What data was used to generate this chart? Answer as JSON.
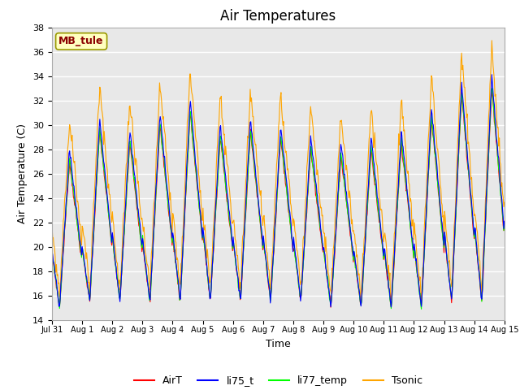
{
  "title": "Air Temperatures",
  "xlabel": "Time",
  "ylabel": "Air Temperature (C)",
  "ylim": [
    14,
    38
  ],
  "yticks": [
    14,
    16,
    18,
    20,
    22,
    24,
    26,
    28,
    30,
    32,
    34,
    36,
    38
  ],
  "xtick_labels": [
    "Jul 31",
    "Aug 1",
    "Aug 2",
    "Aug 3",
    "Aug 4",
    "Aug 5",
    "Aug 6",
    "Aug 7",
    "Aug 8",
    "Aug 9",
    "Aug 10",
    "Aug 11",
    "Aug 12",
    "Aug 13",
    "Aug 14",
    "Aug 15"
  ],
  "series_colors": [
    "red",
    "blue",
    "lime",
    "orange"
  ],
  "series_names": [
    "AirT",
    "li75_t",
    "li77_temp",
    "Tsonic"
  ],
  "annotation_text": "MB_tule",
  "annotation_color": "#8B0000",
  "annotation_bg": "#FFFFC0",
  "annotation_border": "#999900",
  "plot_bg": "#E8E8E8",
  "grid_color": "white",
  "title_fontsize": 12,
  "label_fontsize": 9,
  "tick_fontsize": 8,
  "n_per_day": 48,
  "n_days": 15
}
